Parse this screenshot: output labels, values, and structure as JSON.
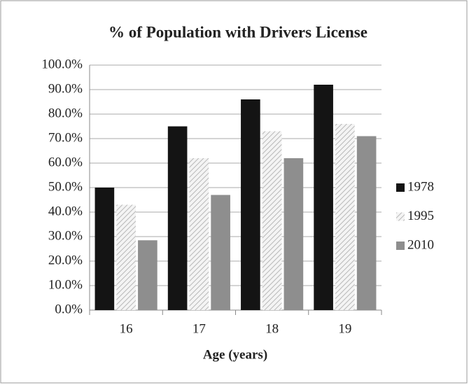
{
  "chart_data": {
    "type": "bar",
    "title": "% of Population with Drivers License",
    "x_label": "Age (years)",
    "categories": [
      "16",
      "17",
      "18",
      "19"
    ],
    "series": [
      {
        "name": "1978",
        "color": "#141414",
        "values": [
          50,
          75,
          86,
          92
        ]
      },
      {
        "name": "1995",
        "color": "#b8b8b8",
        "pattern": "hatch",
        "values": [
          43,
          62,
          73,
          76
        ]
      },
      {
        "name": "2010",
        "color": "#8e8e8e",
        "values": [
          28.5,
          47,
          62,
          71
        ]
      }
    ],
    "ylim": [
      0,
      100
    ],
    "yticks": [
      {
        "value": 0,
        "label": "0.0%"
      },
      {
        "value": 10,
        "label": "10.0%"
      },
      {
        "value": 20,
        "label": "20.0%"
      },
      {
        "value": 30,
        "label": "30.0%"
      },
      {
        "value": 40,
        "label": "40.0%"
      },
      {
        "value": 50,
        "label": "50.0%"
      },
      {
        "value": 60,
        "label": "60.0%"
      },
      {
        "value": 70,
        "label": "70.0%"
      },
      {
        "value": 80,
        "label": "80.0%"
      },
      {
        "value": 90,
        "label": "90.0%"
      },
      {
        "value": 100,
        "label": "100.0%"
      }
    ],
    "grid": true,
    "legend": "right"
  }
}
